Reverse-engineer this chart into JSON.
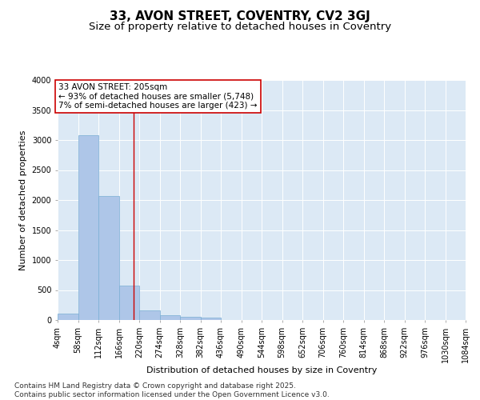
{
  "title": "33, AVON STREET, COVENTRY, CV2 3GJ",
  "subtitle": "Size of property relative to detached houses in Coventry",
  "xlabel": "Distribution of detached houses by size in Coventry",
  "ylabel": "Number of detached properties",
  "bar_color": "#aec6e8",
  "bar_edge_color": "#7aaed4",
  "bg_color": "#dce9f5",
  "grid_color": "#ffffff",
  "annotation_box_color": "#cc0000",
  "annotation_line_color": "#cc0000",
  "annotation_text": "33 AVON STREET: 205sqm\n← 93% of detached houses are smaller (5,748)\n7% of semi-detached houses are larger (423) →",
  "property_line_x": 205,
  "bin_edges": [
    4,
    58,
    112,
    166,
    220,
    274,
    328,
    382,
    436,
    490,
    544,
    598,
    652,
    706,
    760,
    814,
    868,
    922,
    976,
    1030,
    1084
  ],
  "bin_counts": [
    107,
    3076,
    2063,
    573,
    163,
    74,
    57,
    42,
    0,
    0,
    0,
    0,
    0,
    0,
    0,
    0,
    0,
    0,
    0,
    0
  ],
  "ylim": [
    0,
    4000
  ],
  "yticks": [
    0,
    500,
    1000,
    1500,
    2000,
    2500,
    3000,
    3500,
    4000
  ],
  "footnote": "Contains HM Land Registry data © Crown copyright and database right 2025.\nContains public sector information licensed under the Open Government Licence v3.0.",
  "title_fontsize": 11,
  "subtitle_fontsize": 9.5,
  "label_fontsize": 8,
  "tick_fontsize": 7,
  "annotation_fontsize": 7.5,
  "footnote_fontsize": 6.5
}
